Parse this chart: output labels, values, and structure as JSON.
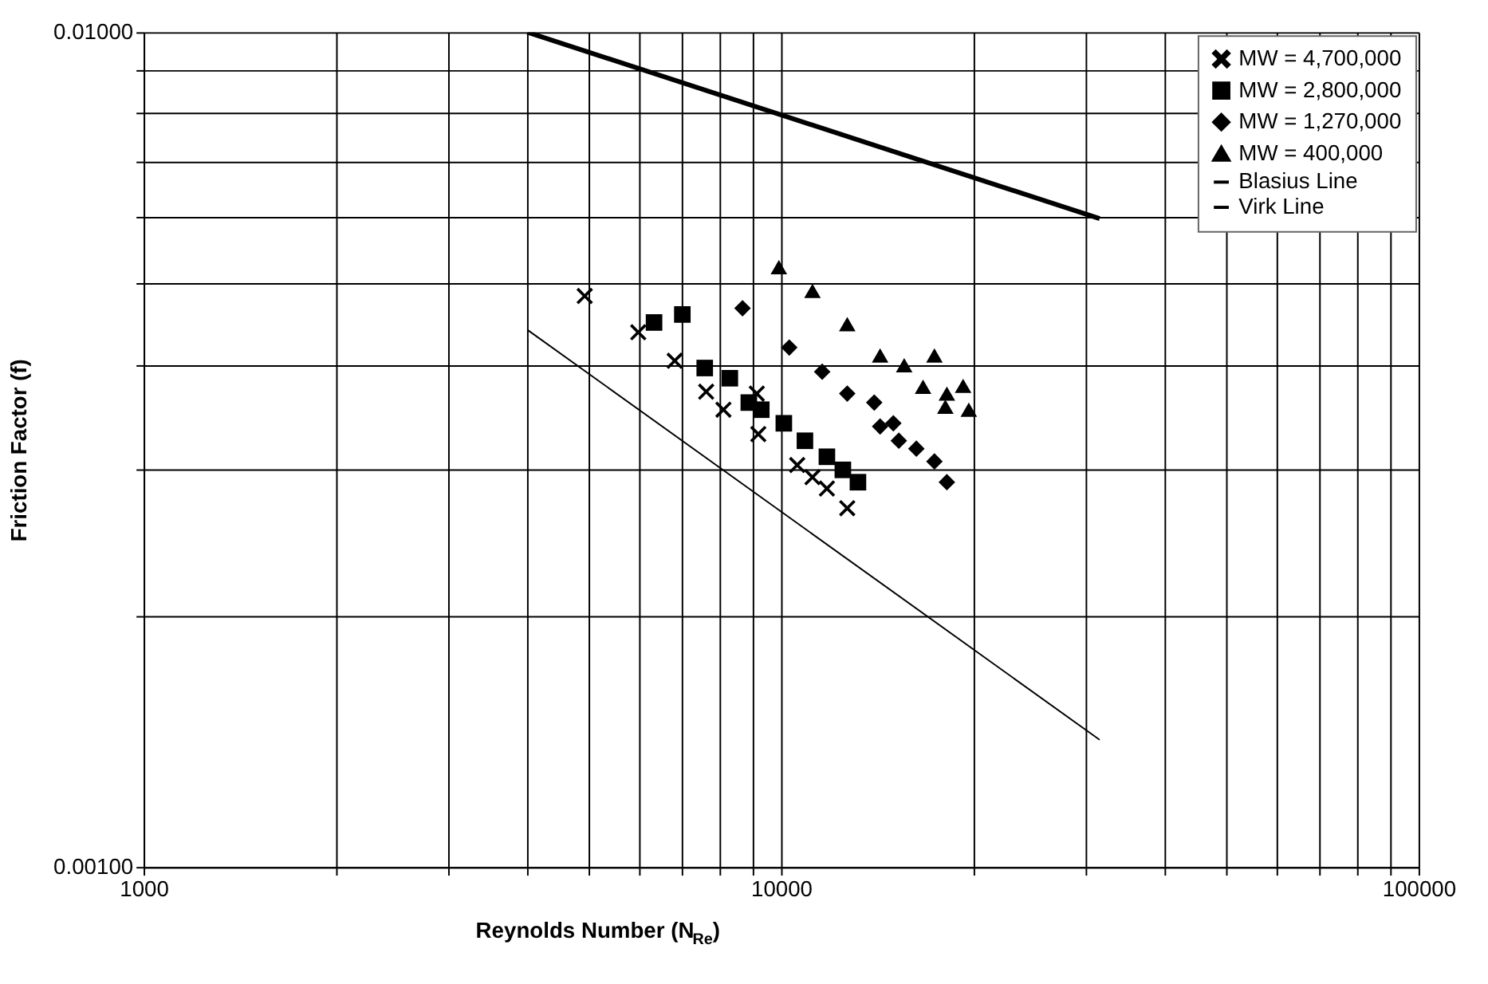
{
  "chart_data": {
    "type": "scatter",
    "xlabel": "Reynolds Number (N$_{Re}$)",
    "ylabel": "Friction Factor (f)",
    "log": "xy",
    "grid": true,
    "legend": "top right",
    "xlim": [
      1000,
      100000
    ],
    "ylim": [
      0.001,
      0.01
    ],
    "xticks": [
      1000,
      {
        "value": 2000,
        "label": null
      },
      {
        "value": 3000,
        "label": null
      },
      {
        "value": 4000,
        "label": null
      },
      {
        "value": 5000,
        "label": null
      },
      {
        "value": 6000,
        "label": null
      },
      {
        "value": 7000,
        "label": null
      },
      {
        "value": 8000,
        "label": null
      },
      {
        "value": 9000,
        "label": null
      },
      10000,
      {
        "value": 20000,
        "label": null
      },
      {
        "value": 30000,
        "label": null
      },
      {
        "value": 40000,
        "label": null
      },
      {
        "value": 50000,
        "label": null
      },
      {
        "value": 60000,
        "label": null
      },
      {
        "value": 70000,
        "label": null
      },
      {
        "value": 80000,
        "label": null
      },
      {
        "value": 90000,
        "label": null
      },
      100000
    ],
    "yticks": [
      {
        "value": 0.001,
        "label": "0.00100"
      },
      {
        "value": 0.002,
        "label": null
      },
      {
        "value": 0.003,
        "label": null
      },
      {
        "value": 0.004,
        "label": null
      },
      {
        "value": 0.005,
        "label": null
      },
      {
        "value": 0.006,
        "label": null
      },
      {
        "value": 0.007,
        "label": null
      },
      {
        "value": 0.008,
        "label": null
      },
      {
        "value": 0.009,
        "label": null
      },
      {
        "value": 0.01,
        "label": "0.01000"
      }
    ],
    "series": [
      {
        "name": "MW = 4,700,000",
        "color": "#000000",
        "marker": "cross",
        "x": [
          4920,
          5970,
          6810,
          7630,
          8120,
          9160,
          9210,
          10600,
          11200,
          11800,
          12700
        ],
        "values": [
          0.00483,
          0.00437,
          0.00404,
          0.00371,
          0.00353,
          0.00369,
          0.0033,
          0.00303,
          0.00293,
          0.00284,
          0.00269
        ]
      },
      {
        "name": "MW = 2,800,000",
        "color": "#000000",
        "marker": "square",
        "x": [
          6320,
          7000,
          7590,
          8310,
          8900,
          9310,
          10100,
          10900,
          11800,
          12500,
          13200
        ],
        "values": [
          0.00449,
          0.00459,
          0.00396,
          0.00385,
          0.0036,
          0.00353,
          0.0034,
          0.00324,
          0.0031,
          0.00299,
          0.00289
        ]
      },
      {
        "name": "MW = 1,270,000",
        "color": "#000000",
        "marker": "diamond",
        "x": [
          8700,
          10300,
          11600,
          12700,
          14000,
          14300,
          15000,
          15300,
          16300,
          17400,
          18200
        ],
        "values": [
          0.00467,
          0.00419,
          0.00392,
          0.00369,
          0.0036,
          0.00337,
          0.0034,
          0.00324,
          0.00317,
          0.00306,
          0.00289
        ]
      },
      {
        "name": "MW = 400,000",
        "color": "#000000",
        "marker": "triangle",
        "x": [
          9920,
          11200,
          12700,
          14300,
          15600,
          17400,
          16700,
          18100,
          18200,
          19300,
          19700
        ],
        "values": [
          0.00523,
          0.0049,
          0.00447,
          0.0041,
          0.00399,
          0.0041,
          0.00376,
          0.00356,
          0.00369,
          0.00377,
          0.00353
        ]
      },
      {
        "name": "Blasius Line",
        "type": "line",
        "color": "#000000",
        "marker": "none",
        "line_style": "solid",
        "x": [
          4000,
          31600
        ],
        "values": [
          0.01,
          0.00598
        ]
      },
      {
        "name": "Virk Line",
        "type": "line",
        "color": "#000000",
        "marker": "none",
        "line_style": "solid",
        "x": [
          4000,
          31600
        ],
        "values": [
          0.0044,
          0.00142
        ]
      }
    ]
  }
}
